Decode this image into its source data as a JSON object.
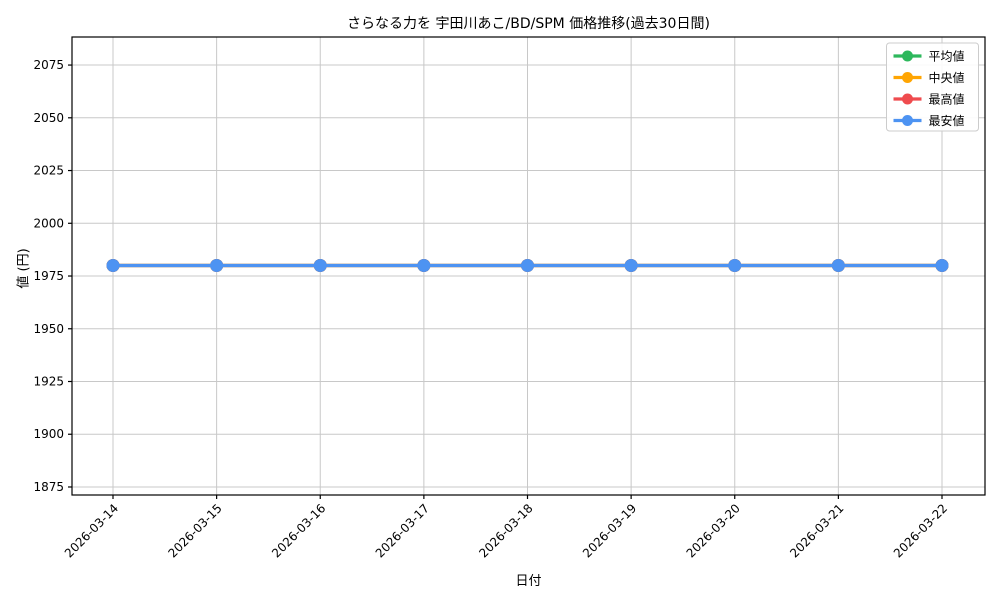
{
  "chart_data": {
    "type": "line",
    "title": "さらなる力を 宇田川あこ/BD/SPM 価格推移(過去30日間)",
    "xlabel": "日付",
    "ylabel": "値 (円)",
    "categories": [
      "2026-03-14",
      "2026-03-15",
      "2026-03-16",
      "2026-03-17",
      "2026-03-18",
      "2026-03-19",
      "2026-03-20",
      "2026-03-21",
      "2026-03-22"
    ],
    "series": [
      {
        "name": "平均値",
        "color": "#2db85c",
        "values": [
          1980,
          1980,
          1980,
          1980,
          1980,
          1980,
          1980,
          1980,
          1980
        ]
      },
      {
        "name": "中央値",
        "color": "#ffa502",
        "values": [
          1980,
          1980,
          1980,
          1980,
          1980,
          1980,
          1980,
          1980,
          1980
        ]
      },
      {
        "name": "最高値",
        "color": "#ef4b4e",
        "values": [
          1980,
          1980,
          1980,
          1980,
          1980,
          1980,
          1980,
          1980,
          1980
        ]
      },
      {
        "name": "最安値",
        "color": "#4d93f2",
        "values": [
          1980,
          1980,
          1980,
          1980,
          1980,
          1980,
          1980,
          1980,
          1980
        ]
      }
    ],
    "yticks": [
      1875,
      1900,
      1925,
      1950,
      1975,
      2000,
      2025,
      2050,
      2075
    ],
    "ylim": [
      1871.2,
      2088.3
    ],
    "grid": true,
    "grid_color": "#c8c8c8",
    "spine_color": "#000000",
    "legend_position": "upper right",
    "legend_bg": "#ffffff",
    "legend_border": "#cccccc"
  }
}
